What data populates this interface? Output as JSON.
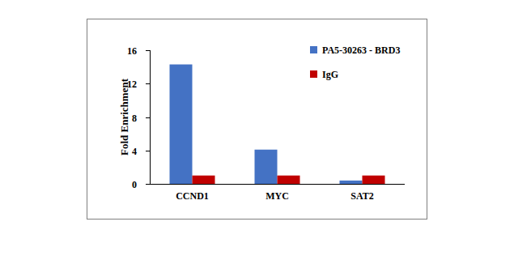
{
  "chart_data": {
    "type": "bar",
    "categories": [
      "CCND1",
      "MYC",
      "SAT2"
    ],
    "series": [
      {
        "name": "PA5-30263 - BRD3",
        "color": "#4472c4",
        "values": [
          14.3,
          4.1,
          0.4
        ]
      },
      {
        "name": "IgG",
        "color": "#c00000",
        "values": [
          1,
          1,
          1
        ]
      }
    ],
    "y_label": "Fold Enrichment",
    "ylim": [
      0,
      16
    ],
    "yticks": [
      0,
      4,
      8,
      12,
      16
    ],
    "grid": false,
    "legend": "top-right"
  }
}
